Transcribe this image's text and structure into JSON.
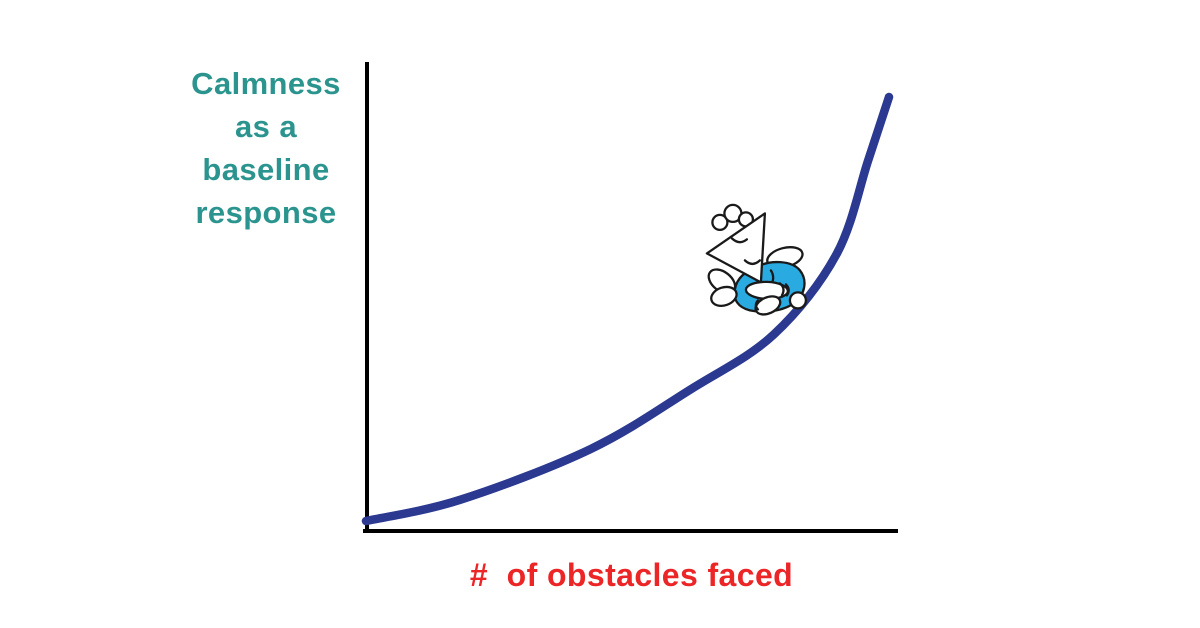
{
  "labels": {
    "y_axis_lines": [
      "Calmness",
      "as a",
      "baseline",
      "response"
    ],
    "x_axis": "#  of obstacles faced"
  },
  "colors": {
    "y_label": "#2b948e",
    "x_label": "#ec2527",
    "curve": "#2b3990",
    "axis": "#000000",
    "character_skin": "#ffffff",
    "character_clothes": "#29abe2",
    "character_outline": "#1a1a1a",
    "background": "#ffffff"
  },
  "chart_data": {
    "type": "line",
    "title": "",
    "xlabel": "# of obstacles faced",
    "ylabel": "Calmness as a baseline response",
    "x_range": [
      0,
      1
    ],
    "y_range": [
      0,
      1
    ],
    "grid": false,
    "legend": false,
    "axis_ticks": "none",
    "style": "hand-drawn conceptual illustration, no numeric ticks",
    "series": [
      {
        "name": "calmness-vs-obstacles",
        "shape": "convex-exponential-growth",
        "points": [
          {
            "x": 0.0,
            "y": 0.0
          },
          {
            "x": 0.18,
            "y": 0.05
          },
          {
            "x": 0.43,
            "y": 0.17
          },
          {
            "x": 0.62,
            "y": 0.31
          },
          {
            "x": 0.78,
            "y": 0.44
          },
          {
            "x": 0.9,
            "y": 0.63
          },
          {
            "x": 0.96,
            "y": 0.85
          },
          {
            "x": 1.0,
            "y": 1.0
          }
        ]
      }
    ],
    "annotations": [
      {
        "id": "meditating-character",
        "description": "cartoon figure with triangular head and hair tuft meditating cross-legged on the curve",
        "x": 0.78,
        "y": 0.44
      }
    ]
  }
}
